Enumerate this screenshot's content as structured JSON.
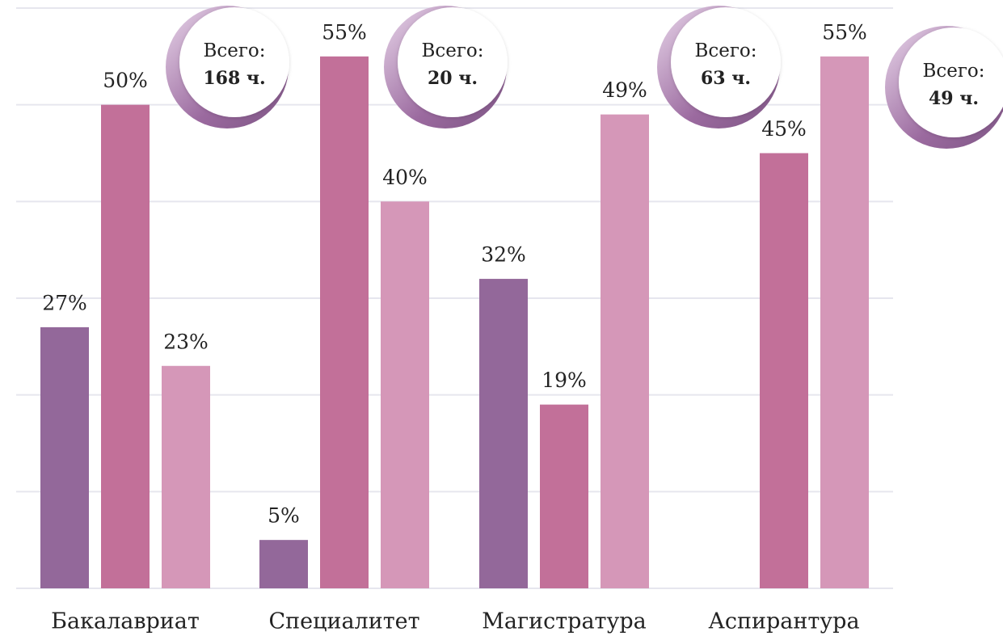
{
  "chart_data": {
    "type": "bar",
    "categories": [
      "Бакалавриат",
      "Специалитет",
      "Магистратура",
      "Аспирантура"
    ],
    "series": [
      {
        "color": "#93689a",
        "values": [
          27,
          5,
          32,
          null
        ],
        "value_labels": [
          "27%",
          "5%",
          "32%",
          null
        ]
      },
      {
        "color": "#c27099",
        "values": [
          50,
          55,
          19,
          45
        ],
        "value_labels": [
          "50%",
          "55%",
          "19%",
          "45%"
        ]
      },
      {
        "color": "#d597b8",
        "values": [
          23,
          40,
          49,
          55
        ],
        "value_labels": [
          "23%",
          "40%",
          "49%",
          "55%"
        ]
      }
    ],
    "ylim": [
      0,
      60
    ],
    "yticks": [
      0,
      10,
      20,
      30,
      40,
      50,
      60
    ],
    "grid": true,
    "annotations": [
      {
        "title": "Всего:",
        "text": "168 ч."
      },
      {
        "title": "Всего:",
        "text": "20 ч."
      },
      {
        "title": "Всего:",
        "text": "63 ч."
      },
      {
        "title": "Всего:",
        "text": "49 ч."
      }
    ]
  }
}
